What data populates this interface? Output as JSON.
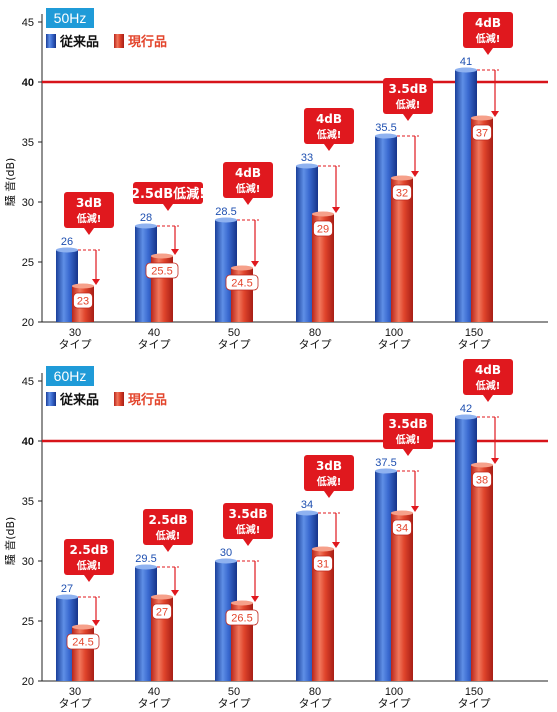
{
  "colors": {
    "conventional": "#2a5bbf",
    "current": "#e3452c",
    "reference_line": "#d7141a",
    "callout": "#e0181e",
    "badge": "#1f9bd8",
    "value_conventional": "#1e4fb0"
  },
  "legend": {
    "conventional_label": "従来品",
    "current_label": "現行品"
  },
  "chart_data": [
    {
      "type": "bar",
      "title": "50Hz",
      "ylabel": "騒 音(dB)",
      "ylim": [
        20,
        45
      ],
      "yticks": [
        20,
        25,
        30,
        35,
        40,
        45
      ],
      "reference_line": 40,
      "categories": [
        "30\nタイプ",
        "40\nタイプ",
        "50\nタイプ",
        "80\nタイプ",
        "100\nタイプ",
        "150\nタイプ"
      ],
      "series": [
        {
          "name": "従来品",
          "values": [
            26,
            28,
            28.5,
            33,
            35.5,
            41
          ]
        },
        {
          "name": "現行品",
          "values": [
            23,
            25.5,
            24.5,
            29,
            32,
            37
          ]
        }
      ],
      "annotations": [
        {
          "num": "3dB",
          "text": "低減!"
        },
        {
          "num": "2.5dB",
          "text": "低減!"
        },
        {
          "num": "4dB",
          "text": "低減!"
        },
        {
          "num": "4dB",
          "text": "低減!"
        },
        {
          "num": "3.5dB",
          "text": "低減!"
        },
        {
          "num": "4dB",
          "text": "低減!"
        }
      ]
    },
    {
      "type": "bar",
      "title": "60Hz",
      "ylabel": "騒 音(dB)",
      "ylim": [
        20,
        45
      ],
      "yticks": [
        20,
        25,
        30,
        35,
        40,
        45
      ],
      "reference_line": 40,
      "categories": [
        "30\nタイプ",
        "40\nタイプ",
        "50\nタイプ",
        "80\nタイプ",
        "100\nタイプ",
        "150\nタイプ"
      ],
      "series": [
        {
          "name": "従来品",
          "values": [
            27,
            29.5,
            30,
            34,
            37.5,
            42
          ]
        },
        {
          "name": "現行品",
          "values": [
            24.5,
            27,
            26.5,
            31,
            34,
            38
          ]
        }
      ],
      "annotations": [
        {
          "num": "2.5dB",
          "text": "低減!"
        },
        {
          "num": "2.5dB",
          "text": "低減!"
        },
        {
          "num": "3.5dB",
          "text": "低減!"
        },
        {
          "num": "3dB",
          "text": "低減!"
        },
        {
          "num": "3.5dB",
          "text": "低減!"
        },
        {
          "num": "4dB",
          "text": "低減!"
        }
      ]
    }
  ]
}
